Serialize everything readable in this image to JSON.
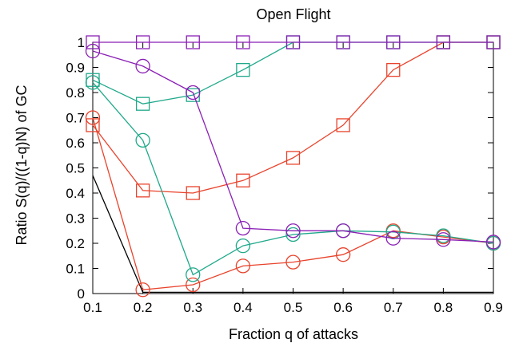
{
  "chart_data": {
    "type": "line",
    "title": "Open Flight",
    "xlabel": "Fraction q of attacks",
    "ylabel": "Ratio S(q)/((1-q)N) of GC",
    "xlim": [
      0.1,
      0.9
    ],
    "ylim": [
      0,
      1
    ],
    "xticks": [
      0.1,
      0.2,
      0.3,
      0.4,
      0.5,
      0.6,
      0.7,
      0.8,
      0.9
    ],
    "yticks": [
      0,
      0.1,
      0.2,
      0.3,
      0.4,
      0.5,
      0.6,
      0.7,
      0.8,
      0.9,
      1
    ],
    "grid": false,
    "legend": "none",
    "series": [
      {
        "color": "#000000",
        "marker": "none",
        "x": [
          0.1,
          0.2,
          0.9
        ],
        "y": [
          0.47,
          0.005,
          0.005
        ]
      },
      {
        "color": "#e8432c",
        "marker": "square",
        "x": [
          0.1,
          0.2,
          0.3,
          0.4,
          0.5,
          0.6,
          0.7,
          0.8,
          0.9
        ],
        "y": [
          0.67,
          0.41,
          0.4,
          0.45,
          0.54,
          0.67,
          0.89,
          1.0,
          1.0
        ]
      },
      {
        "color": "#e8432c",
        "marker": "circle",
        "x": [
          0.1,
          0.2,
          0.3,
          0.4,
          0.5,
          0.6,
          0.7,
          0.8,
          0.9
        ],
        "y": [
          0.7,
          0.015,
          0.035,
          0.11,
          0.125,
          0.155,
          0.25,
          0.225,
          0.2
        ]
      },
      {
        "color": "#1fa88a",
        "marker": "square",
        "x": [
          0.1,
          0.2,
          0.3,
          0.4,
          0.5,
          0.6,
          0.7,
          0.8,
          0.9
        ],
        "y": [
          0.85,
          0.755,
          0.79,
          0.89,
          1.0,
          1.0,
          1.0,
          1.0,
          1.0
        ]
      },
      {
        "color": "#1fa88a",
        "marker": "circle",
        "x": [
          0.1,
          0.2,
          0.3,
          0.4,
          0.5,
          0.6,
          0.7,
          0.8,
          0.9
        ],
        "y": [
          0.84,
          0.61,
          0.075,
          0.19,
          0.235,
          0.25,
          0.245,
          0.23,
          0.2
        ]
      },
      {
        "color": "#8a1fb5",
        "marker": "square",
        "x": [
          0.1,
          0.2,
          0.3,
          0.4,
          0.5,
          0.6,
          0.7,
          0.8,
          0.9
        ],
        "y": [
          1.0,
          1.0,
          1.0,
          1.0,
          1.0,
          1.0,
          1.0,
          1.0,
          1.0
        ]
      },
      {
        "color": "#8a1fb5",
        "marker": "circle",
        "x": [
          0.1,
          0.2,
          0.3,
          0.4,
          0.5,
          0.6,
          0.7,
          0.8,
          0.9
        ],
        "y": [
          0.965,
          0.905,
          0.8,
          0.26,
          0.25,
          0.25,
          0.22,
          0.215,
          0.205
        ]
      }
    ]
  }
}
